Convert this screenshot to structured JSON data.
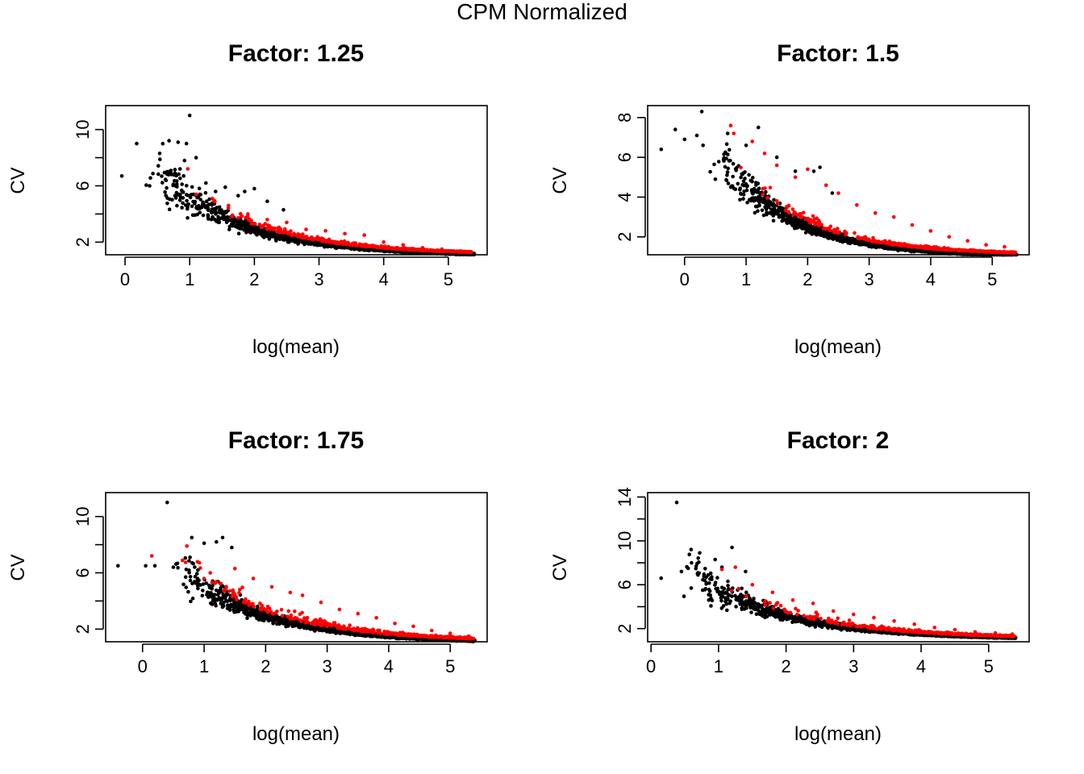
{
  "figure": {
    "title": "CPM Normalized"
  },
  "colors": {
    "base_points": "#000000",
    "highlight_points": "#ff0000",
    "axes": "#000000"
  },
  "chart_data": [
    {
      "type": "scatter",
      "title": "Factor: 1.25",
      "xlabel": "log(mean)",
      "ylabel": "CV",
      "xlim": [
        -0.3,
        5.6
      ],
      "ylim": [
        1.1,
        11.7
      ],
      "xticks": [
        0,
        1,
        2,
        3,
        4,
        5
      ],
      "yticks": [
        2,
        4,
        6,
        8,
        10
      ],
      "ytick_labels": [
        "2",
        "",
        "6",
        "",
        "10"
      ],
      "grid": false,
      "legend": "none",
      "series": [
        {
          "color": "#000000",
          "trend": "main band: CV ≈ 1.05 + 4.1·e^(-0.75·(x-1)), x 0.3–5.4, ~2500 points",
          "x": [
            -0.05,
            0.18,
            0.38,
            0.68,
            0.82,
            0.95,
            1.0,
            0.92,
            1.1,
            0.65,
            0.72,
            0.85,
            1.25,
            1.4,
            1.55,
            1.75,
            1.85,
            2.0,
            2.2,
            2.45
          ],
          "y": [
            6.7,
            9.0,
            6.0,
            9.2,
            9.1,
            9.0,
            11.0,
            7.8,
            8.0,
            7.0,
            6.8,
            7.2,
            6.2,
            5.6,
            5.9,
            5.3,
            5.6,
            5.8,
            4.9,
            4.3
          ]
        },
        {
          "color": "#ff0000",
          "trend": "highlighted genes: slightly above band, x 0.9–5.4, ~220 points",
          "x": [
            0.97,
            1.1,
            1.35,
            1.6,
            1.9,
            2.2,
            2.5,
            2.8,
            3.1,
            3.4,
            3.7,
            4.0,
            4.3,
            4.6,
            4.9,
            5.2,
            5.35
          ],
          "y": [
            7.2,
            5.4,
            5.1,
            4.6,
            4.0,
            3.6,
            3.4,
            2.9,
            2.8,
            2.6,
            2.5,
            2.0,
            1.8,
            1.6,
            1.5,
            1.35,
            1.3
          ]
        }
      ]
    },
    {
      "type": "scatter",
      "title": "Factor: 1.5",
      "xlabel": "log(mean)",
      "ylabel": "CV",
      "xlim": [
        -0.6,
        5.6
      ],
      "ylim": [
        1.1,
        8.6
      ],
      "xticks": [
        0,
        1,
        2,
        3,
        4,
        5
      ],
      "yticks": [
        2,
        4,
        6,
        8
      ],
      "ytick_labels": [
        "2",
        "4",
        "6",
        "8"
      ],
      "grid": false,
      "legend": "none",
      "series": [
        {
          "color": "#000000",
          "trend": "main band: CV ≈ 1.05 + 3.5·e^(-0.85·(x-1)), x 0.4–5.4, ~2500 points",
          "x": [
            -0.38,
            -0.15,
            0.0,
            0.2,
            0.28,
            0.3,
            0.5,
            0.7,
            1.0,
            1.2,
            1.5,
            1.8,
            2.1,
            2.2,
            2.4
          ],
          "y": [
            6.4,
            7.4,
            6.9,
            7.1,
            8.3,
            6.6,
            4.9,
            7.2,
            6.6,
            7.5,
            6.0,
            5.3,
            5.3,
            5.5,
            4.2
          ]
        },
        {
          "color": "#ff0000",
          "trend": "highlighted genes: above band, x 0.75–5.4, ~300 points",
          "x": [
            0.75,
            0.8,
            1.1,
            1.3,
            1.5,
            1.8,
            2.0,
            2.3,
            2.5,
            2.8,
            3.1,
            3.4,
            3.7,
            4.0,
            4.3,
            4.6,
            4.9,
            5.2
          ],
          "y": [
            7.6,
            7.2,
            6.8,
            6.2,
            5.6,
            5.0,
            5.4,
            4.6,
            4.2,
            3.6,
            3.2,
            3.0,
            2.6,
            2.3,
            2.0,
            1.8,
            1.6,
            1.5
          ]
        }
      ]
    },
    {
      "type": "scatter",
      "title": "Factor: 1.75",
      "xlabel": "log(mean)",
      "ylabel": "CV",
      "xlim": [
        -0.6,
        5.6
      ],
      "ylim": [
        1.1,
        11.7
      ],
      "xticks": [
        0,
        1,
        2,
        3,
        4,
        5
      ],
      "yticks": [
        2,
        4,
        6,
        8,
        10
      ],
      "ytick_labels": [
        "2",
        "",
        "6",
        "",
        "10"
      ],
      "grid": false,
      "legend": "none",
      "series": [
        {
          "color": "#000000",
          "trend": "main band: CV ≈ 1.05 + 4.0·e^(-0.7·(x-1)), x 0.5–5.4, ~2500 points",
          "x": [
            -0.4,
            0.05,
            0.4,
            0.2,
            0.5,
            0.8,
            1.0,
            1.2,
            1.3,
            1.45,
            0.7,
            0.9
          ],
          "y": [
            6.5,
            6.5,
            11.0,
            6.5,
            6.4,
            8.5,
            8.1,
            8.2,
            8.5,
            7.8,
            5.7,
            6.2
          ]
        },
        {
          "color": "#ff0000",
          "trend": "highlighted genes: above band, x 0.15–5.35, ~350 points",
          "x": [
            0.15,
            0.72,
            1.1,
            1.5,
            1.8,
            2.1,
            2.4,
            2.6,
            2.9,
            3.2,
            3.5,
            3.8,
            4.1,
            4.4,
            4.7,
            5.0,
            5.3
          ],
          "y": [
            7.2,
            7.9,
            6.0,
            6.3,
            5.6,
            5.0,
            4.6,
            4.4,
            3.9,
            3.4,
            3.1,
            2.8,
            2.4,
            2.2,
            1.9,
            1.7,
            1.5
          ]
        }
      ]
    },
    {
      "type": "scatter",
      "title": "Factor: 2",
      "xlabel": "log(mean)",
      "ylabel": "CV",
      "xlim": [
        -0.05,
        5.6
      ],
      "ylim": [
        0.8,
        14.4
      ],
      "xticks": [
        0,
        1,
        2,
        3,
        4,
        5
      ],
      "yticks": [
        2,
        4,
        6,
        8,
        10,
        12,
        14
      ],
      "ytick_labels": [
        "2",
        "",
        "6",
        "",
        "10",
        "",
        "14"
      ],
      "grid": false,
      "legend": "none",
      "series": [
        {
          "color": "#000000",
          "trend": "main band: CV ≈ 1.05 + 4.6·e^(-0.75·(x-1)), x 0.4–5.4, ~2500 points",
          "x": [
            0.15,
            0.38,
            0.45,
            0.55,
            0.72,
            0.95,
            1.2,
            1.05,
            1.4,
            0.6
          ],
          "y": [
            6.6,
            13.5,
            7.2,
            7.5,
            8.9,
            8.3,
            9.4,
            7.6,
            7.2,
            8.0
          ]
        },
        {
          "color": "#ff0000",
          "trend": "highlighted genes: above band, x 1.0–5.4, ~350 points",
          "x": [
            1.05,
            1.25,
            1.5,
            1.8,
            2.1,
            2.4,
            2.7,
            3.0,
            3.3,
            3.6,
            3.9,
            4.2,
            4.5,
            4.8,
            5.1,
            5.35
          ],
          "y": [
            7.4,
            7.6,
            6.0,
            5.3,
            4.6,
            4.3,
            3.6,
            3.3,
            3.0,
            2.7,
            2.4,
            2.1,
            1.9,
            1.7,
            1.6,
            1.5
          ]
        }
      ]
    }
  ]
}
